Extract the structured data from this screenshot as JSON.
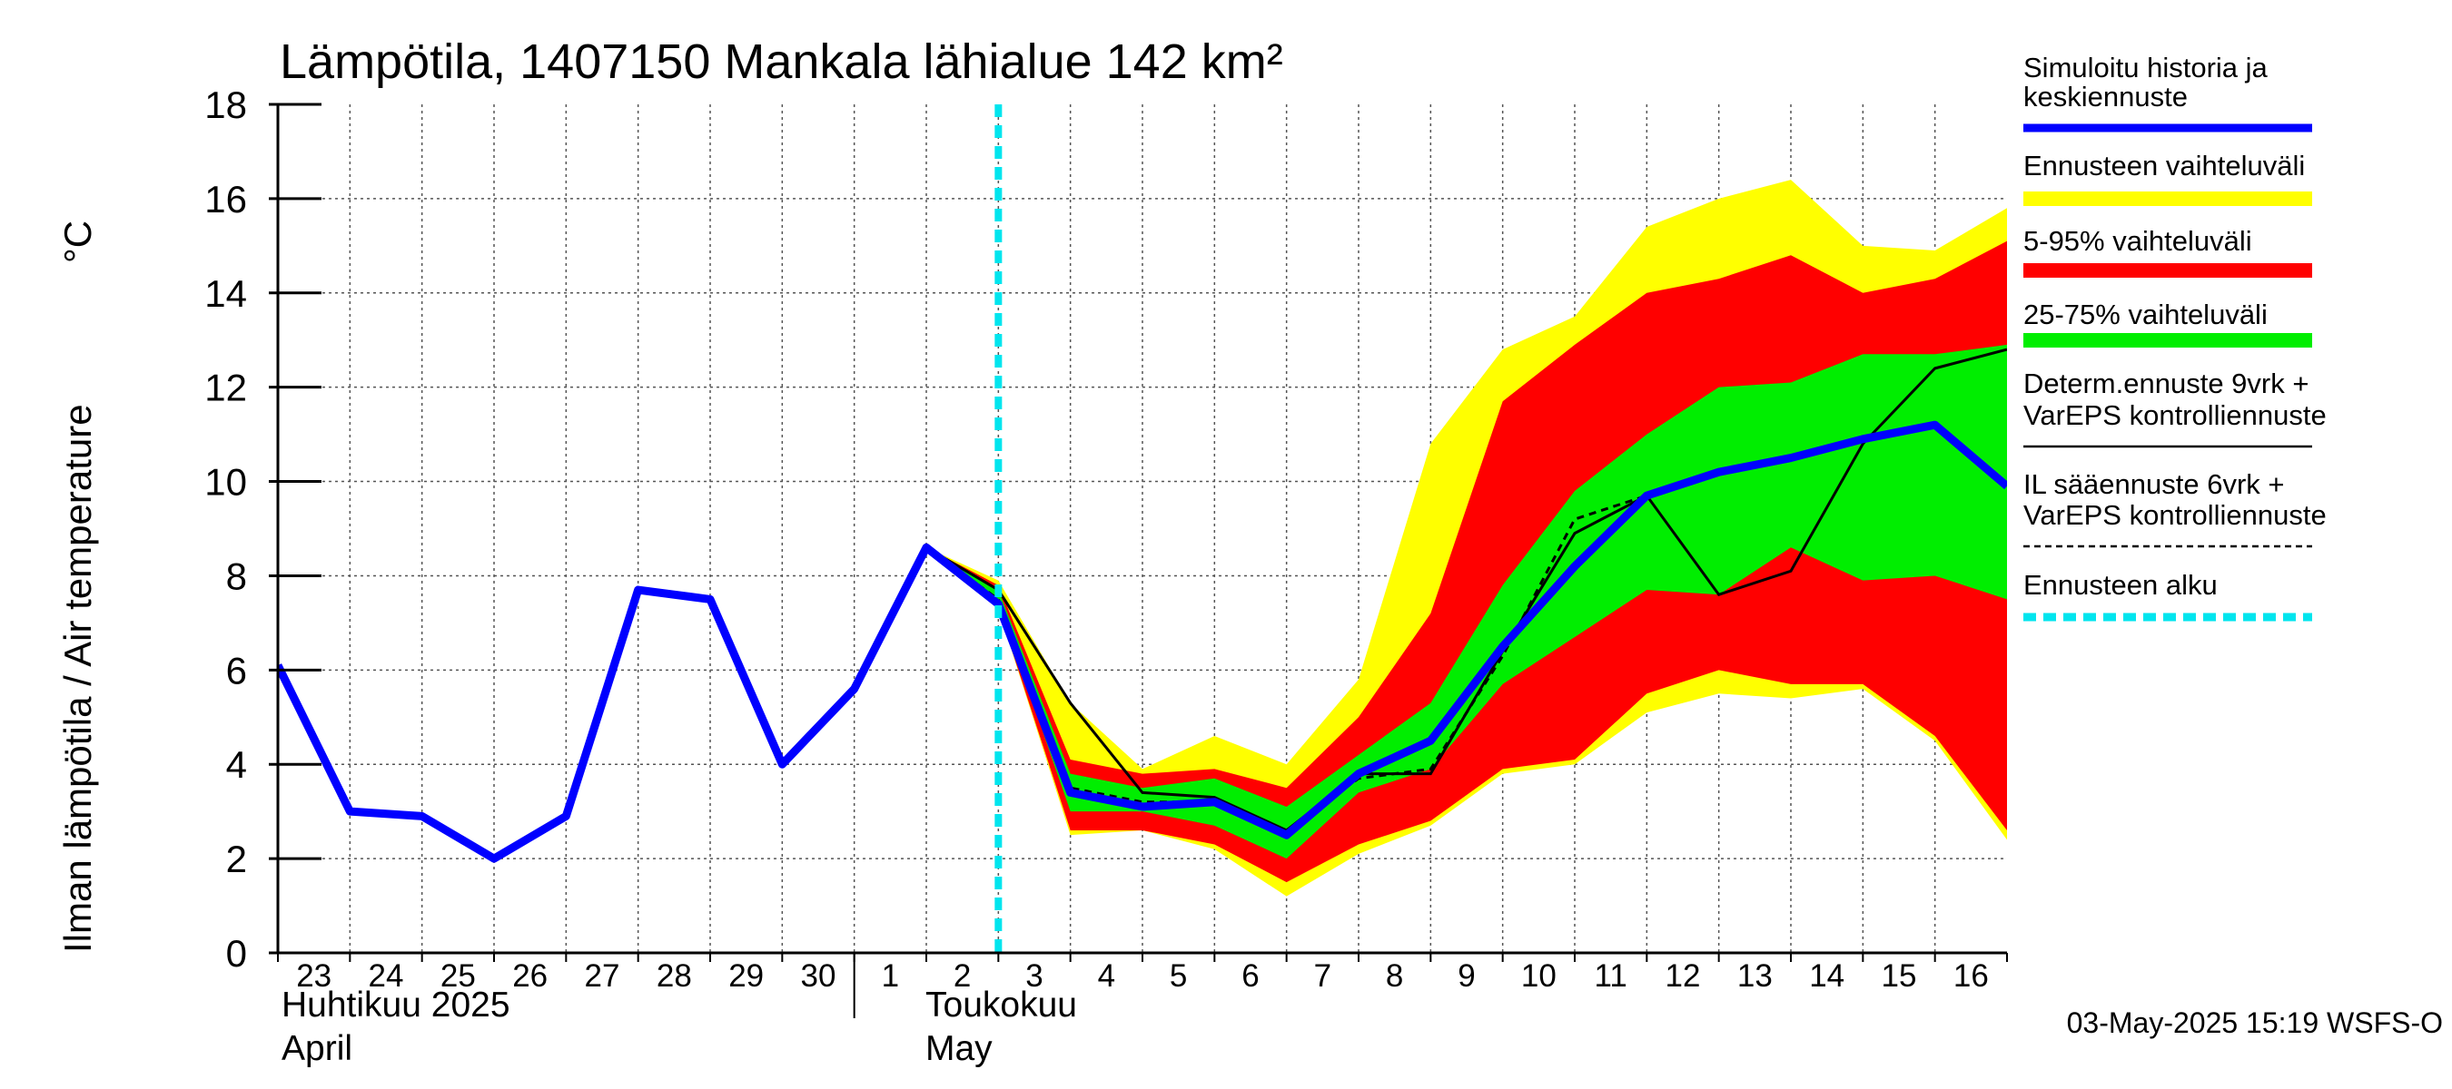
{
  "chart_data": {
    "type": "area",
    "title": "Lämpötila, 1407150 Mankala lähialue 142 km²",
    "ylabel_left": "Ilman lämpötila / Air temperature",
    "ylabel_unit": "°C",
    "ylim": [
      0,
      18
    ],
    "yticks": [
      "0",
      "2",
      "4",
      "6",
      "8",
      "10",
      "12",
      "14",
      "16",
      "18"
    ],
    "x_start": 0,
    "x_end": 24,
    "day_labels": [
      "23",
      "24",
      "25",
      "26",
      "27",
      "28",
      "29",
      "30",
      "1",
      "2",
      "3",
      "4",
      "5",
      "6",
      "7",
      "8",
      "9",
      "10",
      "11",
      "12",
      "13",
      "14",
      "15",
      "16"
    ],
    "month_labels": {
      "april_fi": "Huhtikuu  2025",
      "april_en": "April",
      "may_fi": "Toukokuu",
      "may_en": "May"
    },
    "forecast_start_x": 10.0,
    "simulated_history": {
      "name": "Simuloitu historia ja keskiennuste",
      "x": [
        0,
        1,
        2,
        3,
        4,
        5,
        6,
        7,
        8,
        9,
        10,
        11,
        12,
        13,
        14,
        15,
        16,
        17,
        18,
        19,
        20,
        21,
        22,
        23,
        24
      ],
      "y": [
        6.1,
        3.0,
        2.9,
        2.0,
        2.9,
        7.7,
        7.5,
        4.0,
        5.6,
        8.6,
        7.4,
        3.4,
        3.1,
        3.2,
        2.5,
        3.8,
        4.5,
        6.5,
        8.2,
        9.7,
        10.2,
        10.5,
        10.9,
        11.2,
        9.9
      ]
    },
    "range_full": {
      "name": "Ennusteen vaihteluväli",
      "x": [
        9,
        10,
        11,
        12,
        13,
        14,
        15,
        16,
        17,
        18,
        19,
        20,
        21,
        22,
        23,
        24
      ],
      "upper": [
        8.6,
        7.9,
        5.3,
        3.9,
        4.6,
        4.0,
        5.8,
        10.8,
        12.8,
        13.5,
        15.4,
        16.0,
        16.4,
        15.0,
        14.9,
        15.8
      ],
      "lower": [
        8.6,
        7.3,
        2.5,
        2.6,
        2.2,
        1.2,
        2.1,
        2.7,
        3.8,
        4.0,
        5.1,
        5.5,
        5.4,
        5.6,
        4.5,
        2.4
      ]
    },
    "range_5_95": {
      "name": "5-95% vaihteluväli",
      "x": [
        9,
        10,
        11,
        12,
        13,
        14,
        15,
        16,
        17,
        18,
        19,
        20,
        21,
        22,
        23,
        24
      ],
      "upper": [
        8.6,
        7.8,
        4.1,
        3.8,
        3.9,
        3.5,
        5.0,
        7.2,
        11.7,
        12.9,
        14.0,
        14.3,
        14.8,
        14.0,
        14.3,
        15.1
      ],
      "lower": [
        8.6,
        7.3,
        2.6,
        2.6,
        2.3,
        1.5,
        2.3,
        2.8,
        3.9,
        4.1,
        5.5,
        6.0,
        5.7,
        5.7,
        4.6,
        2.6
      ]
    },
    "range_25_75": {
      "name": "25-75% vaihteluväli",
      "x": [
        9,
        10,
        11,
        12,
        13,
        14,
        15,
        16,
        17,
        18,
        19,
        20,
        21,
        22,
        23,
        24
      ],
      "upper": [
        8.6,
        7.7,
        3.8,
        3.5,
        3.7,
        3.1,
        4.2,
        5.3,
        7.8,
        9.8,
        11.0,
        12.0,
        12.1,
        12.7,
        12.7,
        12.9
      ],
      "lower": [
        8.6,
        7.4,
        3.0,
        3.0,
        2.7,
        2.0,
        3.4,
        3.9,
        5.7,
        6.7,
        7.7,
        7.6,
        8.6,
        7.9,
        8.0,
        7.5
      ]
    },
    "deterministic": {
      "name": "Determ.ennuste 9vrk + VarEPS kontrolliennuste",
      "x": [
        9,
        10,
        11,
        12,
        13,
        14,
        15,
        16,
        17,
        18,
        19,
        20,
        21,
        22,
        23,
        24
      ],
      "y": [
        8.6,
        7.7,
        5.3,
        3.4,
        3.3,
        2.6,
        3.8,
        3.8,
        6.4,
        8.9,
        9.7,
        7.6,
        8.1,
        10.8,
        12.4,
        12.8
      ]
    },
    "il_forecast": {
      "name": "IL sääennuste 6vrk + VarEPS kontrolliennuste",
      "x": [
        9,
        10,
        11,
        12,
        13,
        14,
        15,
        16,
        17,
        18,
        19
      ],
      "y": [
        8.6,
        7.5,
        3.5,
        3.2,
        3.2,
        2.6,
        3.7,
        3.9,
        6.3,
        9.2,
        9.7
      ]
    },
    "legend": [
      {
        "label": "Simuloitu historia ja keskiennuste",
        "color": "#0000ff",
        "style": "thick"
      },
      {
        "label": "Ennusteen vaihteluväli",
        "color": "#ffff00",
        "style": "band"
      },
      {
        "label": "5-95% vaihteluväli",
        "color": "#ff0000",
        "style": "band"
      },
      {
        "label": "25-75% vaihteluväli",
        "color": "#00ee00",
        "style": "band"
      },
      {
        "label": "Determ.ennuste 9vrk + VarEPS kontrolliennuste",
        "color": "#000000",
        "style": "thin"
      },
      {
        "label": "IL sääennuste 6vrk + VarEPS kontrolliennuste",
        "color": "#000000",
        "style": "dashed"
      },
      {
        "label": "Ennusteen alku",
        "color": "#00e5ee",
        "style": "dashed-thick"
      }
    ],
    "footer": "03-May-2025 15:19 WSFS-O"
  }
}
